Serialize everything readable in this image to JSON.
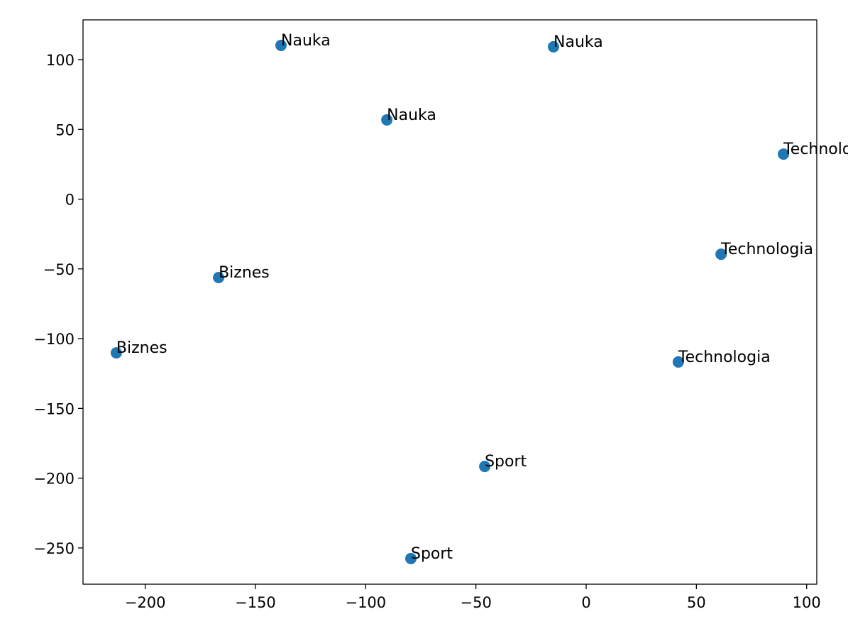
{
  "chart_data": {
    "type": "scatter",
    "x": [
      -138.4,
      -14.8,
      -90.4,
      89.5,
      61.2,
      -166.7,
      -213.1,
      41.8,
      -46.0,
      -79.5
    ],
    "series": [
      {
        "color": "#1f77b4",
        "values": [
          110.2,
          109.2,
          56.8,
          32.3,
          -39.5,
          -56.2,
          -110.2,
          -116.7,
          -191.6,
          -257.6
        ],
        "labels": [
          "Nauka",
          "Nauka",
          "Nauka",
          "Technologia",
          "Technologia",
          "Biznes",
          "Biznes",
          "Technologia",
          "Sport",
          "Sport"
        ]
      }
    ],
    "xlim": [
      -228.2,
      104.6
    ],
    "ylim": [
      -276,
      128.5
    ],
    "xticks": [
      {
        "value": -200,
        "label": "−200"
      },
      {
        "value": -150,
        "label": "−150"
      },
      {
        "value": -100,
        "label": "−100"
      },
      {
        "value": -50,
        "label": "−50"
      },
      0,
      50,
      100
    ],
    "yticks": [
      {
        "value": -250,
        "label": "−250"
      },
      {
        "value": -200,
        "label": "−200"
      },
      {
        "value": -150,
        "label": "−150"
      },
      {
        "value": -100,
        "label": "−100"
      },
      {
        "value": -50,
        "label": "−50"
      },
      0,
      50,
      100
    ],
    "grid": false
  }
}
